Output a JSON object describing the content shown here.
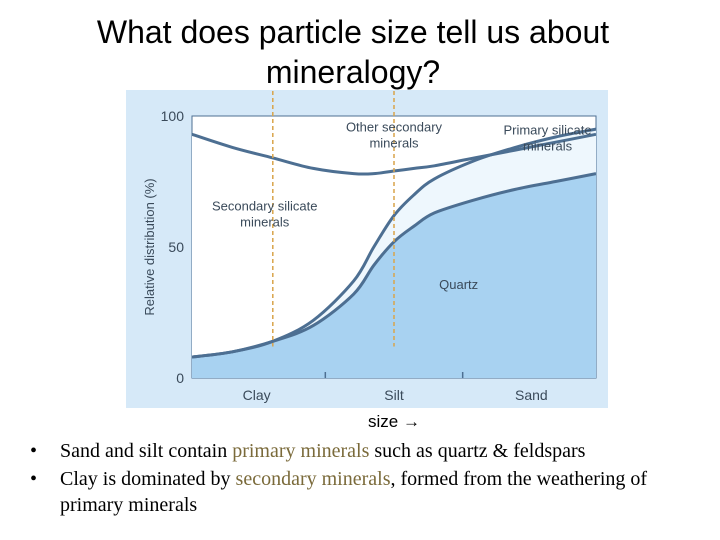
{
  "slide": {
    "title": "What does particle size tell us about mineralogy?",
    "size_label": "size",
    "arrow": "→",
    "bullets": [
      {
        "pre": "Sand and silt contain ",
        "hl": "primary minerals",
        "post": " such as quartz & feldspars"
      },
      {
        "pre": "Clay is dominated by ",
        "hl": "secondary minerals",
        "post": ", formed from the weathering of primary minerals"
      }
    ],
    "bullet_char": "•"
  },
  "colors": {
    "panel_bg": "#d6e9f8",
    "plot_bg": "#ffffff",
    "quartz_fill": "#a8d2f1",
    "primary_fill": "#eef7fd",
    "curve": "#4d6f92",
    "axis_text": "#3a4a5a",
    "guide_line": "#d9a44a",
    "highlight_text": "#7a6a3a"
  },
  "chart_data": {
    "type": "area",
    "ylabel": "Relative distribution (%)",
    "ylim": [
      0,
      100
    ],
    "yticks": [
      "100",
      "50",
      "0"
    ],
    "categories": [
      "Clay",
      "Silt",
      "Sand"
    ],
    "x": [
      0,
      10,
      20,
      30,
      40,
      45,
      50,
      55,
      60,
      70,
      80,
      90,
      100
    ],
    "series": [
      {
        "name": "Quartz",
        "values": [
          8,
          10,
          14,
          20,
          32,
          43,
          52,
          58,
          63,
          68,
          72,
          75,
          78
        ]
      },
      {
        "name": "Primary silicate minerals",
        "values": [
          8,
          10,
          14,
          22,
          37,
          50,
          62,
          70,
          76,
          83,
          88,
          92,
          95
        ]
      },
      {
        "name": "Secondary silicate minerals",
        "values": [
          93,
          88,
          84,
          80,
          78,
          78,
          79,
          80,
          81,
          84,
          87,
          90,
          93
        ]
      },
      {
        "name": "Other secondary minerals",
        "values": [
          100,
          100,
          100,
          100,
          100,
          100,
          100,
          100,
          100,
          100,
          100,
          100,
          100
        ]
      }
    ],
    "annotations": [
      {
        "text": "Other secondary",
        "text2": "minerals"
      },
      {
        "text": "Primary silicate",
        "text2": "minerals"
      },
      {
        "text": "Secondary silicate",
        "text2": "minerals"
      },
      {
        "text": "Quartz",
        "text2": ""
      }
    ],
    "guide_lines_x": [
      20,
      50
    ]
  }
}
